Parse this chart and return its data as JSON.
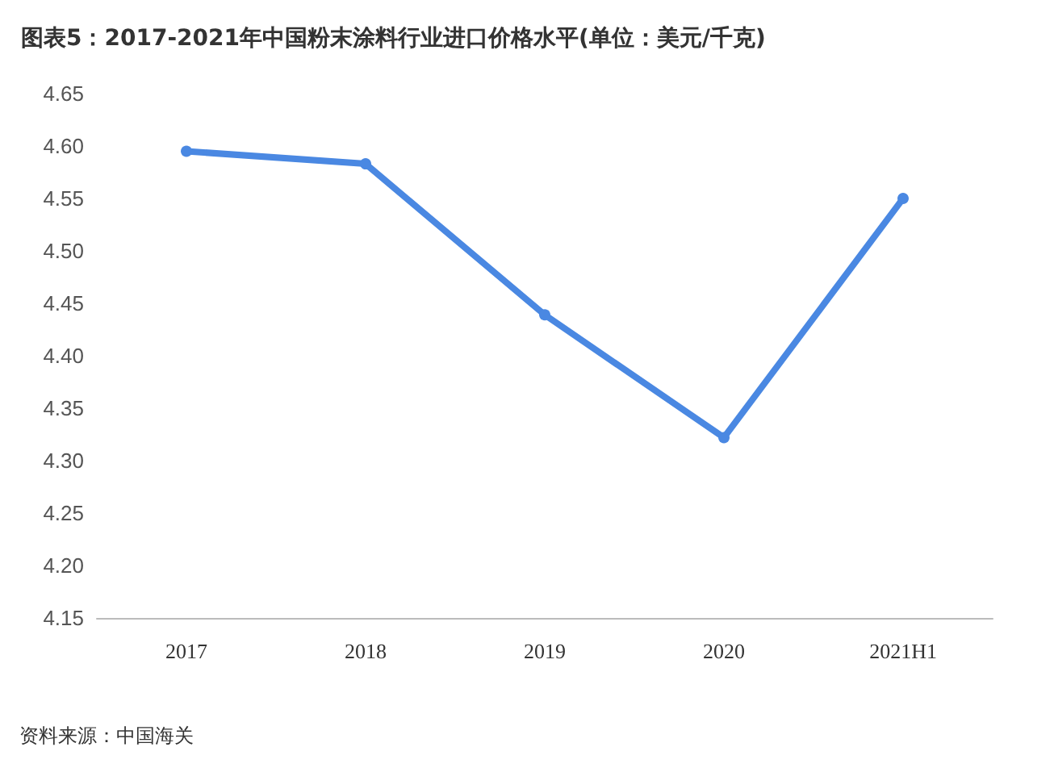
{
  "chart_data": {
    "type": "line",
    "title": "图表5：2017-2021年中国粉末涂料行业进口价格水平(单位：美元/千克)",
    "categories": [
      "2017",
      "2018",
      "2019",
      "2020",
      "2021H1"
    ],
    "series": [
      {
        "color": "#4a88e2",
        "values": [
          4.595,
          4.583,
          4.439,
          4.322,
          4.55
        ]
      }
    ],
    "ylim": [
      4.15,
      4.65
    ],
    "yticks": [
      4.15,
      {
        "value": 4.2,
        "label": "4.20"
      },
      4.25,
      {
        "value": 4.3,
        "label": "4.30"
      },
      4.35,
      {
        "value": 4.4,
        "label": "4.40"
      },
      4.45,
      {
        "value": 4.5,
        "label": "4.50"
      },
      4.55,
      {
        "value": 4.6,
        "label": "4.60"
      },
      4.65
    ],
    "marker": "circle",
    "line_style": "solid",
    "annotations": [
      "资料来源：中国海关"
    ]
  }
}
